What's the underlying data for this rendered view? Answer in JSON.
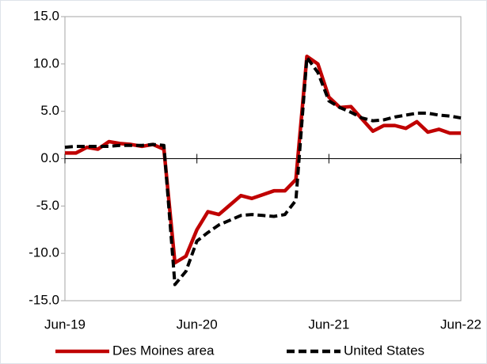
{
  "chart_data": {
    "type": "line",
    "categories": [
      "Jun-19",
      null,
      null,
      null,
      null,
      null,
      null,
      null,
      null,
      null,
      null,
      null,
      "Jun-20",
      null,
      null,
      null,
      null,
      null,
      null,
      null,
      null,
      null,
      null,
      null,
      "Jun-21",
      null,
      null,
      null,
      null,
      null,
      null,
      null,
      null,
      null,
      null,
      null,
      "Jun-22"
    ],
    "series": [
      {
        "name": "Des Moines area",
        "color": "#c00000",
        "style": "solid",
        "values": [
          0.6,
          0.6,
          1.2,
          1.0,
          1.8,
          1.6,
          1.5,
          1.3,
          1.5,
          1.0,
          -11.0,
          -10.3,
          -7.5,
          -5.6,
          -5.9,
          -4.9,
          -3.9,
          -4.2,
          -3.8,
          -3.4,
          -3.4,
          -2.2,
          10.8,
          10.0,
          6.5,
          5.4,
          5.5,
          4.2,
          2.9,
          3.5,
          3.5,
          3.2,
          3.9,
          2.8,
          3.1,
          2.7,
          2.7
        ]
      },
      {
        "name": "United States",
        "color": "#000000",
        "style": "dashed",
        "values": [
          1.2,
          1.3,
          1.3,
          1.3,
          1.3,
          1.4,
          1.4,
          1.4,
          1.5,
          1.4,
          -13.3,
          -11.9,
          -8.7,
          -7.8,
          -7.0,
          -6.5,
          -6.0,
          -5.9,
          -6.0,
          -6.1,
          -5.9,
          -4.4,
          10.7,
          9.1,
          6.1,
          5.4,
          4.9,
          4.3,
          4.0,
          4.1,
          4.4,
          4.6,
          4.8,
          4.8,
          4.6,
          4.5,
          4.3
        ]
      }
    ],
    "ylim": [
      -15,
      15
    ],
    "yticks": [
      {
        "value": -15,
        "label": "-15.0"
      },
      {
        "value": -10,
        "label": "-10.0"
      },
      {
        "value": -5,
        "label": "-5.0"
      },
      {
        "value": 0,
        "label": "0.0"
      },
      {
        "value": 5,
        "label": "5.0"
      },
      {
        "value": 10,
        "label": "10.0"
      },
      {
        "value": 15,
        "label": "15.0"
      }
    ],
    "grid": false,
    "legend": "bottom"
  }
}
